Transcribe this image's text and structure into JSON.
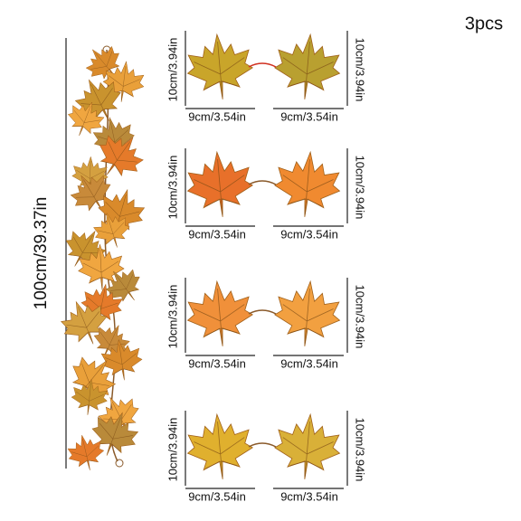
{
  "quantity": "3pcs",
  "garland_length": "100cm/39.37in",
  "rows": [
    {
      "left_height": "10cm/3.94in",
      "left_width": "9cm/3.54in",
      "right_width": "9cm/3.54in",
      "right_height": "10cm/3.94in"
    },
    {
      "left_height": "10cm/3.94in",
      "left_width": "9cm/3.54in",
      "right_width": "9cm/3.54in",
      "right_height": "10cm/3.94in"
    },
    {
      "left_height": "10cm/3.94in",
      "left_width": "9cm/3.54in",
      "right_width": "9cm/3.54in",
      "right_height": "10cm/3.94in"
    },
    {
      "left_height": "10cm/3.94in",
      "left_width": "9cm/3.54in",
      "right_width": "9cm/3.54in",
      "right_height": "10cm/3.94in"
    }
  ]
}
